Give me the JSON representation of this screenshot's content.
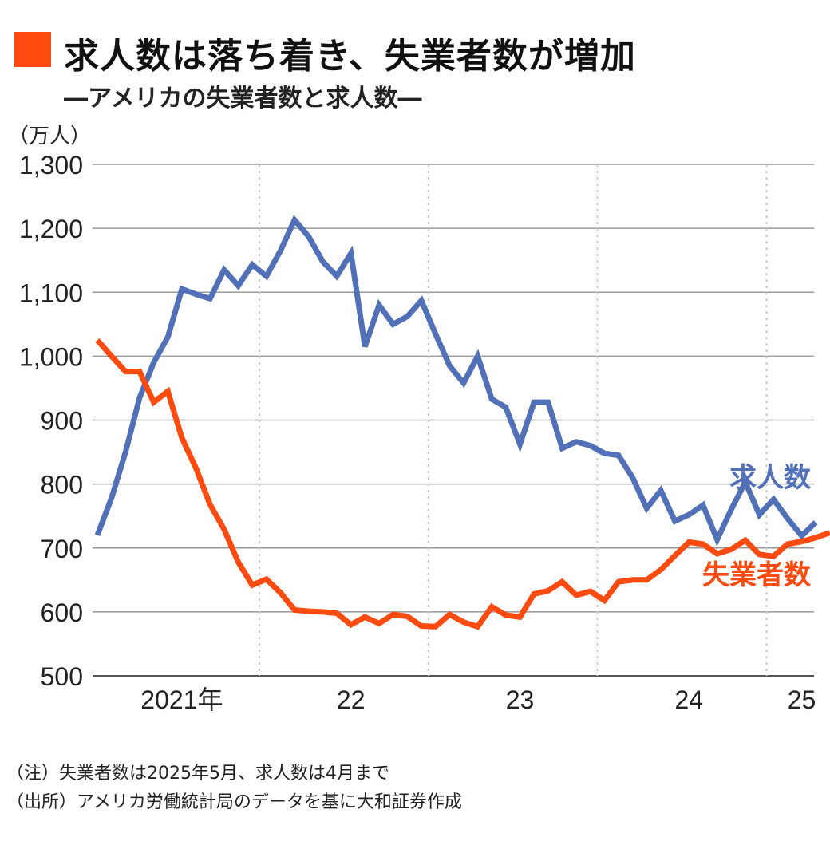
{
  "header": {
    "title": "求人数は落ち着き、失業者数が増加",
    "subtitle": "―アメリカの失業者数と求人数―"
  },
  "unit_label": "（万人）",
  "notes": [
    "（注）失業者数は2025年5月、求人数は4月まで",
    "（出所）アメリカ労働統計局のデータを基に大和証券作成"
  ],
  "colors": {
    "openings": "#5270b8",
    "unemployed": "#ff4a10",
    "title_mark": "#ff4a10",
    "grid": "#9a9a9a",
    "year_grid": "#c8c8c8"
  },
  "chart_data": {
    "type": "line",
    "xlabel": "",
    "ylabel": "（万人）",
    "ylim": [
      500,
      1300
    ],
    "yticks": [
      500,
      600,
      700,
      800,
      900,
      1000,
      1100,
      1200,
      1300
    ],
    "ytick_labels": [
      "500",
      "600",
      "700",
      "800",
      "900",
      "1,000",
      "1,100",
      "1,200",
      "1,300"
    ],
    "x_start": "2021-01",
    "x_tick_labels": [
      {
        "label": "2021年",
        "month": "2021-07"
      },
      {
        "label": "22",
        "month": "2022-07"
      },
      {
        "label": "23",
        "month": "2023-07"
      },
      {
        "label": "24",
        "month": "2024-07"
      },
      {
        "label": "25",
        "month": "2025-03"
      }
    ],
    "year_boundaries": [
      "2022-01",
      "2023-01",
      "2024-01",
      "2025-01"
    ],
    "grid": true,
    "series": [
      {
        "name": "求人数",
        "start": "2021-01",
        "values": [
          720,
          778,
          850,
          935,
          990,
          1030,
          1105,
          1097,
          1090,
          1135,
          1110,
          1143,
          1125,
          1165,
          1213,
          1187,
          1148,
          1125,
          1161,
          1015,
          1080,
          1050,
          1062,
          1087,
          1035,
          985,
          958,
          1000,
          933,
          920,
          862,
          928,
          928,
          856,
          866,
          860,
          848,
          845,
          810,
          762,
          790,
          742,
          752,
          767,
          713,
          760,
          803,
          752,
          776,
          746,
          719,
          740
        ]
      },
      {
        "name": "失業者数",
        "start": "2021-01",
        "values": [
          1025,
          1000,
          976,
          976,
          928,
          945,
          872,
          825,
          768,
          729,
          678,
          642,
          651,
          630,
          603,
          601,
          600,
          598,
          580,
          592,
          582,
          596,
          593,
          578,
          577,
          596,
          584,
          577,
          608,
          595,
          592,
          628,
          633,
          647,
          626,
          632,
          618,
          647,
          650,
          650,
          666,
          688,
          709,
          706,
          691,
          698,
          712,
          690,
          687,
          706,
          710,
          716,
          724
        ]
      }
    ],
    "series_labels": [
      {
        "name": "求人数",
        "anchor_value": 792
      },
      {
        "name": "失業者数",
        "anchor_value": 640
      }
    ]
  }
}
